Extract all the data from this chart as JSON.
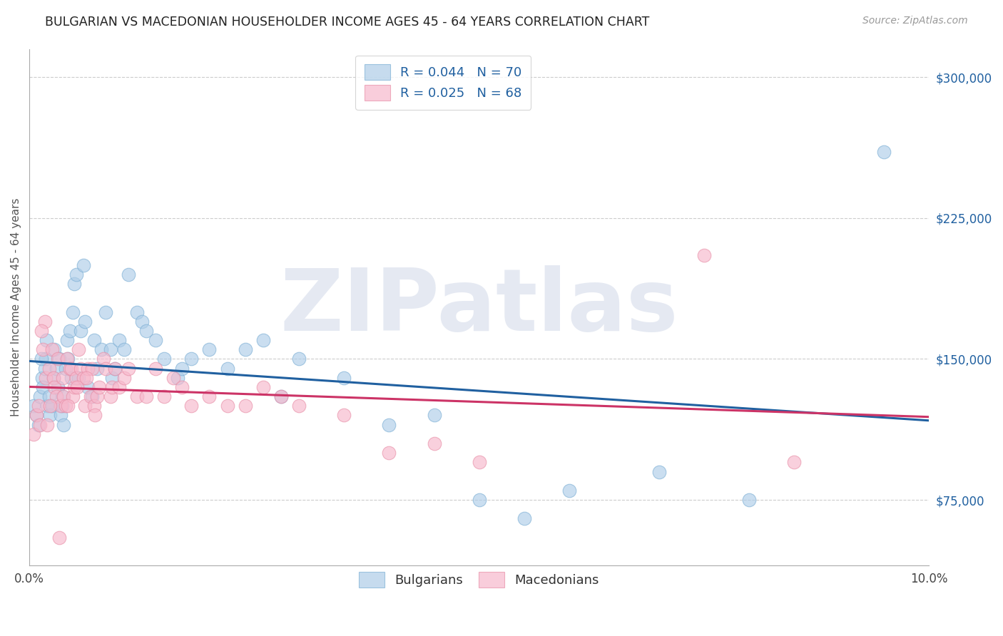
{
  "title": "BULGARIAN VS MACEDONIAN HOUSEHOLDER INCOME AGES 45 - 64 YEARS CORRELATION CHART",
  "source": "Source: ZipAtlas.com",
  "ylabel": "Householder Income Ages 45 - 64 years",
  "xlim": [
    0.0,
    10.0
  ],
  "ylim": [
    40000,
    315000
  ],
  "yticks": [
    75000,
    150000,
    225000,
    300000
  ],
  "ytick_labels": [
    "$75,000",
    "$150,000",
    "$225,000",
    "$300,000"
  ],
  "watermark": "ZIPatlas",
  "bg_color": "#ffffff",
  "grid_color": "#cccccc",
  "blue_fill": "#aecde8",
  "blue_edge": "#7eb0d5",
  "pink_fill": "#f7b8cc",
  "pink_edge": "#e890a8",
  "blue_line_color": "#2060a0",
  "pink_line_color": "#cc3366",
  "legend_blue_label": "R = 0.044   N = 70",
  "legend_pink_label": "R = 0.025   N = 68",
  "legend_label_blue": "Bulgarians",
  "legend_label_pink": "Macedonians",
  "title_color": "#222222",
  "axis_label_color": "#555555",
  "ytick_color": "#2060a0",
  "xtick_labels": [
    "0.0%",
    "10.0%"
  ],
  "bulgarians_x": [
    0.05,
    0.08,
    0.1,
    0.12,
    0.14,
    0.15,
    0.17,
    0.18,
    0.2,
    0.22,
    0.23,
    0.25,
    0.27,
    0.28,
    0.3,
    0.32,
    0.33,
    0.35,
    0.37,
    0.38,
    0.4,
    0.42,
    0.43,
    0.45,
    0.47,
    0.48,
    0.5,
    0.52,
    0.55,
    0.57,
    0.6,
    0.62,
    0.65,
    0.7,
    0.72,
    0.75,
    0.8,
    0.85,
    0.9,
    0.92,
    0.95,
    1.0,
    1.05,
    1.1,
    1.2,
    1.25,
    1.3,
    1.4,
    1.5,
    1.65,
    1.7,
    1.8,
    2.0,
    2.2,
    2.4,
    2.6,
    2.8,
    3.0,
    3.5,
    4.0,
    4.5,
    5.0,
    5.5,
    6.0,
    7.0,
    8.0,
    9.5,
    0.13,
    0.19,
    0.36
  ],
  "bulgarians_y": [
    125000,
    120000,
    115000,
    130000,
    140000,
    135000,
    145000,
    150000,
    125000,
    130000,
    120000,
    125000,
    140000,
    155000,
    145000,
    135000,
    150000,
    120000,
    130000,
    115000,
    145000,
    160000,
    150000,
    165000,
    140000,
    175000,
    190000,
    195000,
    140000,
    165000,
    200000,
    170000,
    135000,
    130000,
    160000,
    145000,
    155000,
    175000,
    155000,
    140000,
    145000,
    160000,
    155000,
    195000,
    175000,
    170000,
    165000,
    160000,
    150000,
    140000,
    145000,
    150000,
    155000,
    145000,
    155000,
    160000,
    130000,
    150000,
    140000,
    115000,
    120000,
    75000,
    65000,
    80000,
    90000,
    75000,
    260000,
    150000,
    160000,
    125000
  ],
  "macedonians_x": [
    0.05,
    0.08,
    0.1,
    0.12,
    0.15,
    0.17,
    0.18,
    0.2,
    0.22,
    0.25,
    0.27,
    0.28,
    0.3,
    0.32,
    0.35,
    0.37,
    0.38,
    0.4,
    0.42,
    0.45,
    0.47,
    0.48,
    0.5,
    0.52,
    0.55,
    0.57,
    0.6,
    0.62,
    0.65,
    0.68,
    0.7,
    0.72,
    0.75,
    0.78,
    0.82,
    0.85,
    0.9,
    0.92,
    0.95,
    1.0,
    1.05,
    1.1,
    1.2,
    1.3,
    1.4,
    1.5,
    1.6,
    1.7,
    1.8,
    2.0,
    2.2,
    2.4,
    2.6,
    2.8,
    3.0,
    3.5,
    4.0,
    4.5,
    5.0,
    7.5,
    8.5,
    0.13,
    0.23,
    0.33,
    0.43,
    0.53,
    0.63,
    0.73
  ],
  "macedonians_y": [
    110000,
    120000,
    125000,
    115000,
    155000,
    170000,
    140000,
    115000,
    145000,
    155000,
    140000,
    135000,
    130000,
    150000,
    125000,
    140000,
    130000,
    125000,
    150000,
    145000,
    145000,
    130000,
    135000,
    140000,
    155000,
    145000,
    140000,
    125000,
    145000,
    130000,
    145000,
    125000,
    130000,
    135000,
    150000,
    145000,
    130000,
    135000,
    145000,
    135000,
    140000,
    145000,
    130000,
    130000,
    145000,
    130000,
    140000,
    135000,
    125000,
    130000,
    125000,
    125000,
    135000,
    130000,
    125000,
    120000,
    100000,
    105000,
    95000,
    205000,
    95000,
    165000,
    125000,
    55000,
    125000,
    135000,
    140000,
    120000
  ]
}
